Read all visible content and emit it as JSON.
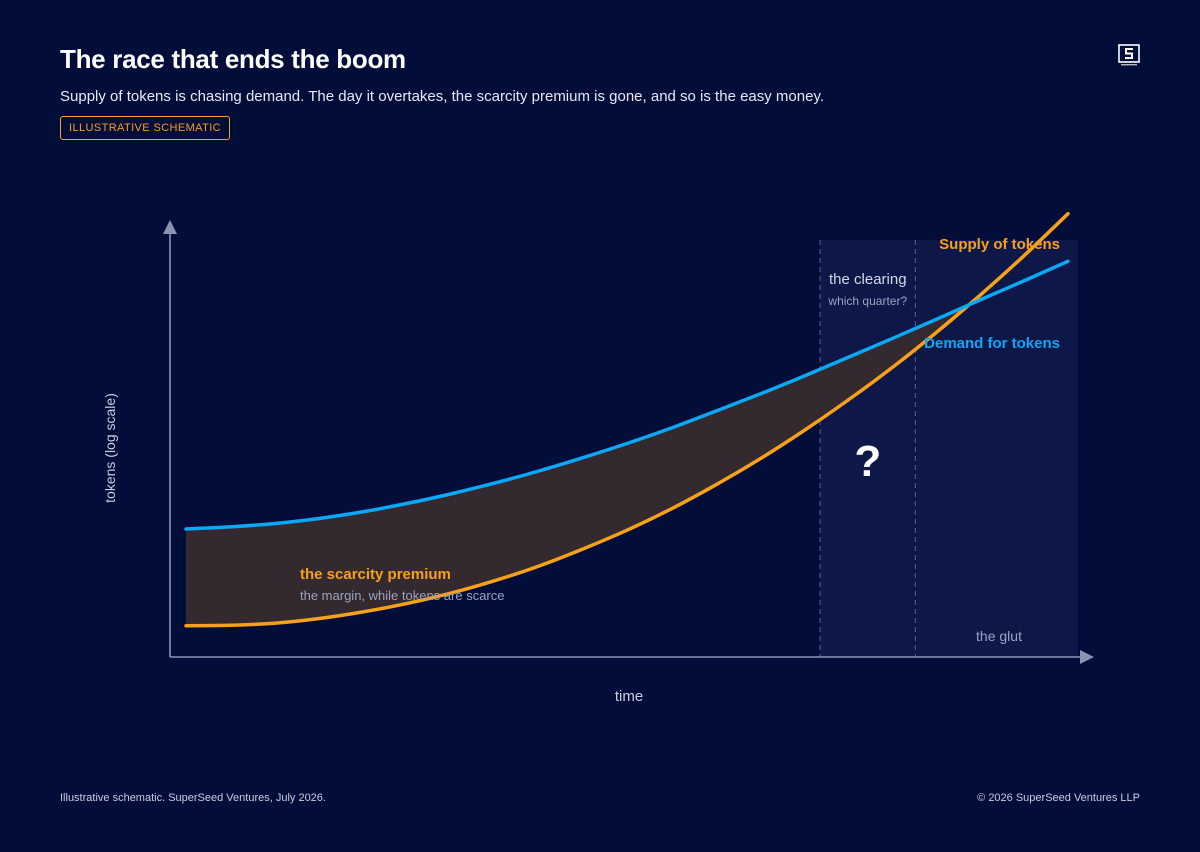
{
  "header": {
    "title": "The race that ends the boom",
    "subtitle": "Supply of tokens is chasing demand. The day it overtakes, the scarcity premium is gone, and so is the easy money.",
    "badge": "ILLUSTRATIVE SCHEMATIC",
    "logo_icon": "superseed-logo-icon"
  },
  "colors": {
    "background": "#030d3a",
    "supply": "#f7a01a",
    "demand": "#0aa8f5",
    "premium_fill": "#33292f",
    "zone_fill": "#0d1848",
    "axis": "#8b93b3",
    "muted_text": "#9aa2bf"
  },
  "chart_data": {
    "type": "line",
    "xlabel": "time",
    "ylabel": "tokens (log scale)",
    "x_range": [
      0,
      100
    ],
    "y_range": [
      0,
      100
    ],
    "x": [
      0,
      5,
      10,
      15,
      20,
      25,
      30,
      35,
      40,
      45,
      50,
      55,
      60,
      65,
      70,
      75,
      80,
      85,
      90,
      95,
      100
    ],
    "series": [
      {
        "name": "Supply of tokens",
        "values": [
          7.5,
          7.6,
          8.1,
          9.2,
          10.8,
          12.8,
          15.3,
          18.3,
          21.8,
          25.9,
          30.4,
          35.5,
          41.2,
          47.4,
          54.2,
          61.5,
          69.3,
          77.7,
          86.7,
          96.2,
          106.3
        ]
      },
      {
        "name": "Demand for tokens",
        "values": [
          30.7,
          31.2,
          32.0,
          33.2,
          34.8,
          36.8,
          39.1,
          41.7,
          44.6,
          47.8,
          51.2,
          54.9,
          58.9,
          63.0,
          67.3,
          71.8,
          76.3,
          80.9,
          85.6,
          90.2,
          94.9
        ]
      }
    ],
    "zones": [
      {
        "name": "the clearing",
        "sublabel": "which quarter?",
        "x_start": 71.9,
        "x_end": 82.7,
        "marker": "?"
      },
      {
        "name": "the glut",
        "x_start": 82.7,
        "x_end": 100
      }
    ],
    "annotations": [
      {
        "text": "the scarcity premium",
        "sublabel": "the margin, while tokens are scarce"
      }
    ],
    "grid": false,
    "legend": "direct-labels"
  },
  "footer": {
    "source": "Illustrative schematic. SuperSeed Ventures, July 2026.",
    "copyright": "© 2026 SuperSeed Ventures LLP"
  }
}
